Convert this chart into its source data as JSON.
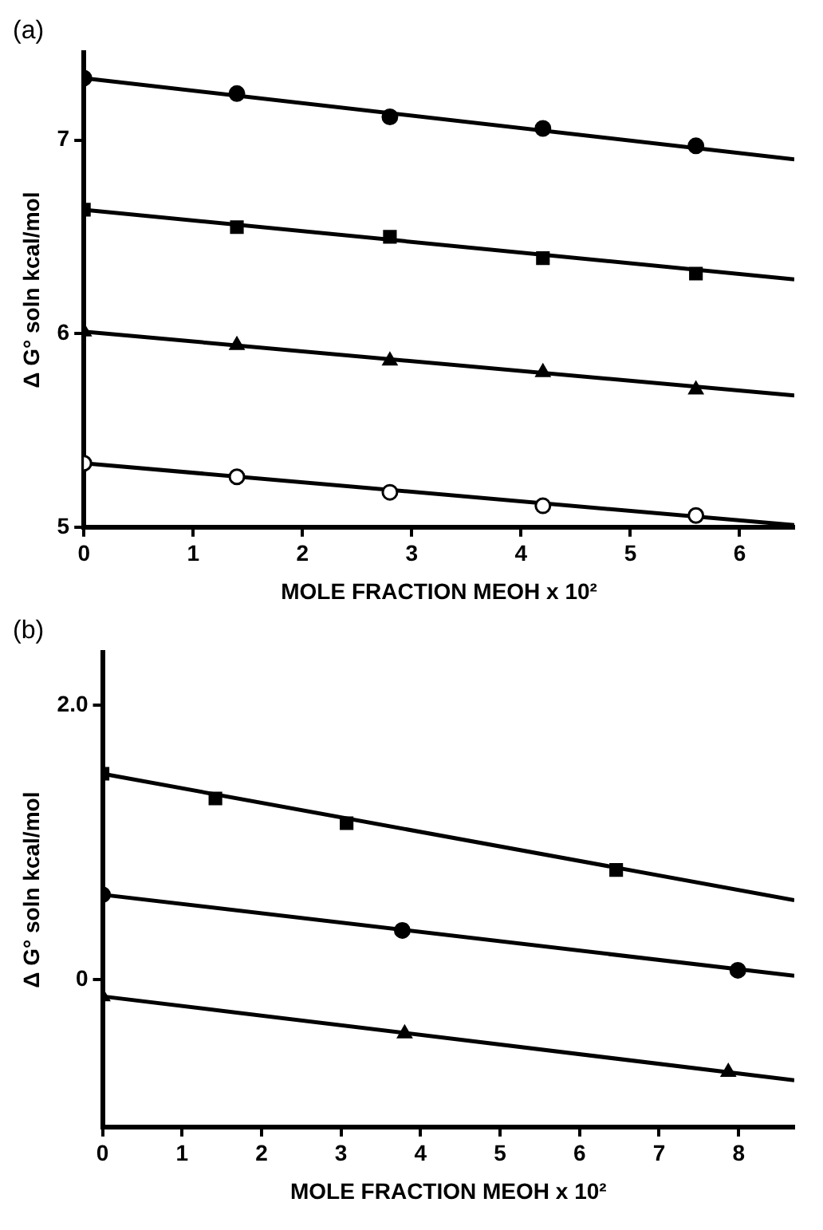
{
  "chart_data": [
    {
      "type": "scatter",
      "title": "(a)",
      "xlabel": "MOLE FRACTION MEOH x 10²",
      "ylabel": "Δ G° soln kcal/mol",
      "xlim": [
        0,
        6.5
      ],
      "ylim": [
        5,
        7.45
      ],
      "xticks": [
        0,
        1,
        2,
        3,
        4,
        5,
        6
      ],
      "yticks": [
        5,
        6,
        7
      ],
      "grid": false,
      "legend": false,
      "series": [
        {
          "marker": "circle",
          "color": "#000000",
          "x": [
            0,
            1.4,
            2.8,
            4.2,
            5.6
          ],
          "values": [
            7.32,
            7.24,
            7.12,
            7.06,
            6.97
          ]
        },
        {
          "type": "line",
          "marker": "none",
          "color": "#000000",
          "x": [
            0,
            6.5
          ],
          "values": [
            7.32,
            6.9
          ]
        },
        {
          "marker": "square",
          "color": "#000000",
          "x": [
            0,
            1.4,
            2.8,
            4.2,
            5.6
          ],
          "values": [
            6.64,
            6.55,
            6.5,
            6.39,
            6.31
          ]
        },
        {
          "type": "line",
          "marker": "none",
          "color": "#000000",
          "x": [
            0,
            6.5
          ],
          "values": [
            6.64,
            6.28
          ]
        },
        {
          "marker": "triangle",
          "color": "#000000",
          "x": [
            0,
            1.4,
            2.8,
            4.2,
            5.6
          ],
          "values": [
            6.01,
            5.94,
            5.86,
            5.8,
            5.71
          ]
        },
        {
          "type": "line",
          "marker": "none",
          "color": "#000000",
          "x": [
            0,
            6.5
          ],
          "values": [
            6.01,
            5.68
          ]
        },
        {
          "marker": "circle",
          "color": "#ffffff",
          "x": [
            0,
            1.4,
            2.8,
            4.2,
            5.6
          ],
          "values": [
            5.33,
            5.26,
            5.18,
            5.11,
            5.06
          ]
        },
        {
          "type": "line",
          "marker": "none",
          "color": "#000000",
          "x": [
            0,
            6.5
          ],
          "values": [
            5.33,
            5.01
          ]
        }
      ]
    },
    {
      "type": "scatter",
      "title": "(b)",
      "xlabel": "MOLE FRACTION MEOH x 10²",
      "ylabel": "Δ G° soln kcal/mol",
      "xlim": [
        0,
        8.7
      ],
      "ylim": [
        -1.07,
        2.38
      ],
      "xticks": [
        0,
        1,
        2,
        3,
        4,
        5,
        6,
        7,
        8
      ],
      "yticks": [
        {
          "value": 2,
          "label": "2.0"
        },
        0
      ],
      "grid": false,
      "legend": false,
      "series": [
        {
          "marker": "square",
          "color": "#000000",
          "x": [
            0,
            1.42,
            3.07,
            6.46
          ],
          "values": [
            1.5,
            1.32,
            1.14,
            0.8
          ]
        },
        {
          "type": "line",
          "marker": "none",
          "color": "#000000",
          "x": [
            0,
            8.7
          ],
          "values": [
            1.5,
            0.58
          ]
        },
        {
          "marker": "circle",
          "color": "#000000",
          "x": [
            0,
            3.77,
            7.99
          ],
          "values": [
            0.62,
            0.36,
            0.07
          ]
        },
        {
          "type": "line",
          "marker": "none",
          "color": "#000000",
          "x": [
            0,
            8.7
          ],
          "values": [
            0.62,
            0.03
          ]
        },
        {
          "marker": "triangle",
          "color": "#000000",
          "x": [
            0,
            3.8,
            7.87
          ],
          "values": [
            -0.12,
            -0.39,
            -0.67
          ]
        },
        {
          "type": "line",
          "marker": "none",
          "color": "#000000",
          "x": [
            0,
            8.7
          ],
          "values": [
            -0.12,
            -0.73
          ]
        }
      ]
    }
  ]
}
